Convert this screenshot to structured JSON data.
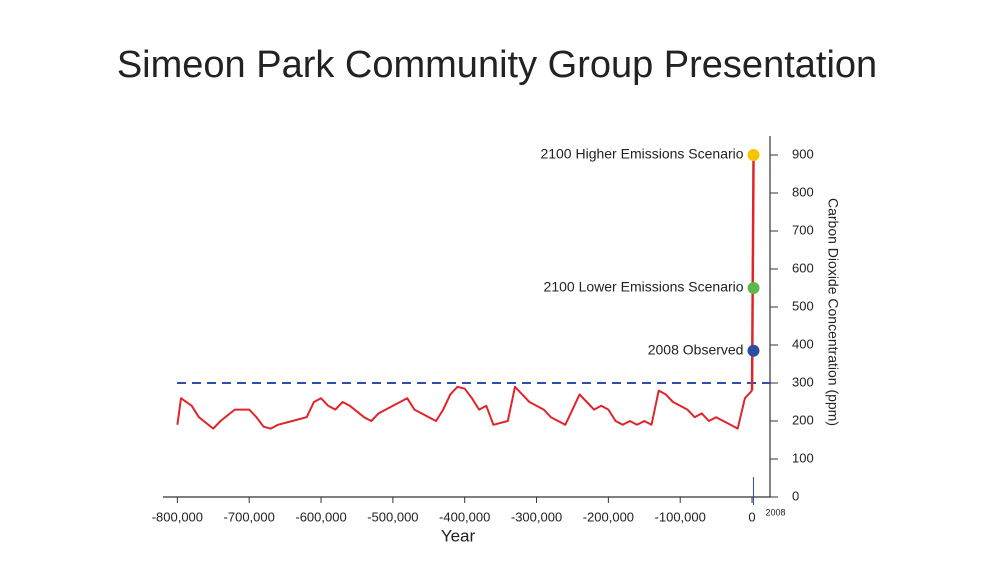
{
  "chart_data": {
    "type": "line",
    "title": "Simeon Park Community Group Presentation",
    "x_label": "Year",
    "y_label": "Carbon Dioxide Concentration (ppm)",
    "color": "#e0252a",
    "x": [
      -800000,
      -795000,
      -780000,
      -770000,
      -750000,
      -740000,
      -720000,
      -700000,
      -690000,
      -680000,
      -670000,
      -660000,
      -640000,
      -620000,
      -610000,
      -600000,
      -590000,
      -580000,
      -570000,
      -560000,
      -540000,
      -530000,
      -520000,
      -500000,
      -490000,
      -480000,
      -470000,
      -460000,
      -450000,
      -440000,
      -430000,
      -420000,
      -410000,
      -400000,
      -390000,
      -380000,
      -370000,
      -360000,
      -340000,
      -330000,
      -320000,
      -310000,
      -300000,
      -290000,
      -280000,
      -270000,
      -260000,
      -250000,
      -240000,
      -230000,
      -220000,
      -210000,
      -200000,
      -190000,
      -180000,
      -170000,
      -160000,
      -150000,
      -140000,
      -130000,
      -120000,
      -110000,
      -100000,
      -90000,
      -80000,
      -70000,
      -60000,
      -50000,
      -40000,
      -30000,
      -20000,
      -10000,
      0
    ],
    "values": [
      190,
      260,
      240,
      210,
      180,
      200,
      230,
      230,
      210,
      185,
      180,
      190,
      200,
      210,
      250,
      260,
      240,
      230,
      250,
      240,
      210,
      200,
      220,
      240,
      250,
      260,
      230,
      220,
      210,
      200,
      230,
      270,
      290,
      285,
      260,
      230,
      240,
      190,
      200,
      290,
      270,
      250,
      240,
      230,
      210,
      200,
      190,
      230,
      270,
      250,
      230,
      240,
      230,
      200,
      190,
      200,
      190,
      200,
      190,
      280,
      270,
      250,
      240,
      230,
      210,
      220,
      200,
      210,
      200,
      190,
      180,
      260,
      280
    ],
    "annotations": [
      {
        "text": "2100 Higher Emissions Scenario",
        "x": 2100,
        "y": 900,
        "color": "#f5c400"
      },
      {
        "text": "2100 Lower Emissions Scenario",
        "x": 2100,
        "y": 550,
        "color": "#5bb84a"
      },
      {
        "text": "2008 Observed",
        "x": 2008,
        "y": 385,
        "color": "#2b4ea0"
      }
    ],
    "reference_line": {
      "value": 300,
      "color": "#2f4fb0"
    },
    "x_marker": {
      "value": 2008,
      "label": "2008",
      "color": "#2f4fb0"
    },
    "xlim": [
      -820000,
      25000
    ],
    "ylim": [
      0,
      950
    ],
    "xticks": [
      {
        "value": -800000,
        "label": "-800,000"
      },
      {
        "value": -700000,
        "label": "-700,000"
      },
      {
        "value": -600000,
        "label": "-600,000"
      },
      {
        "value": -500000,
        "label": "-500,000"
      },
      {
        "value": -400000,
        "label": "-400,000"
      },
      {
        "value": -300000,
        "label": "-300,000"
      },
      {
        "value": -200000,
        "label": "-200,000"
      },
      {
        "value": -100000,
        "label": "-100,000"
      },
      0
    ],
    "yticks": [
      0,
      100,
      200,
      300,
      400,
      500,
      600,
      700,
      800,
      900
    ]
  }
}
